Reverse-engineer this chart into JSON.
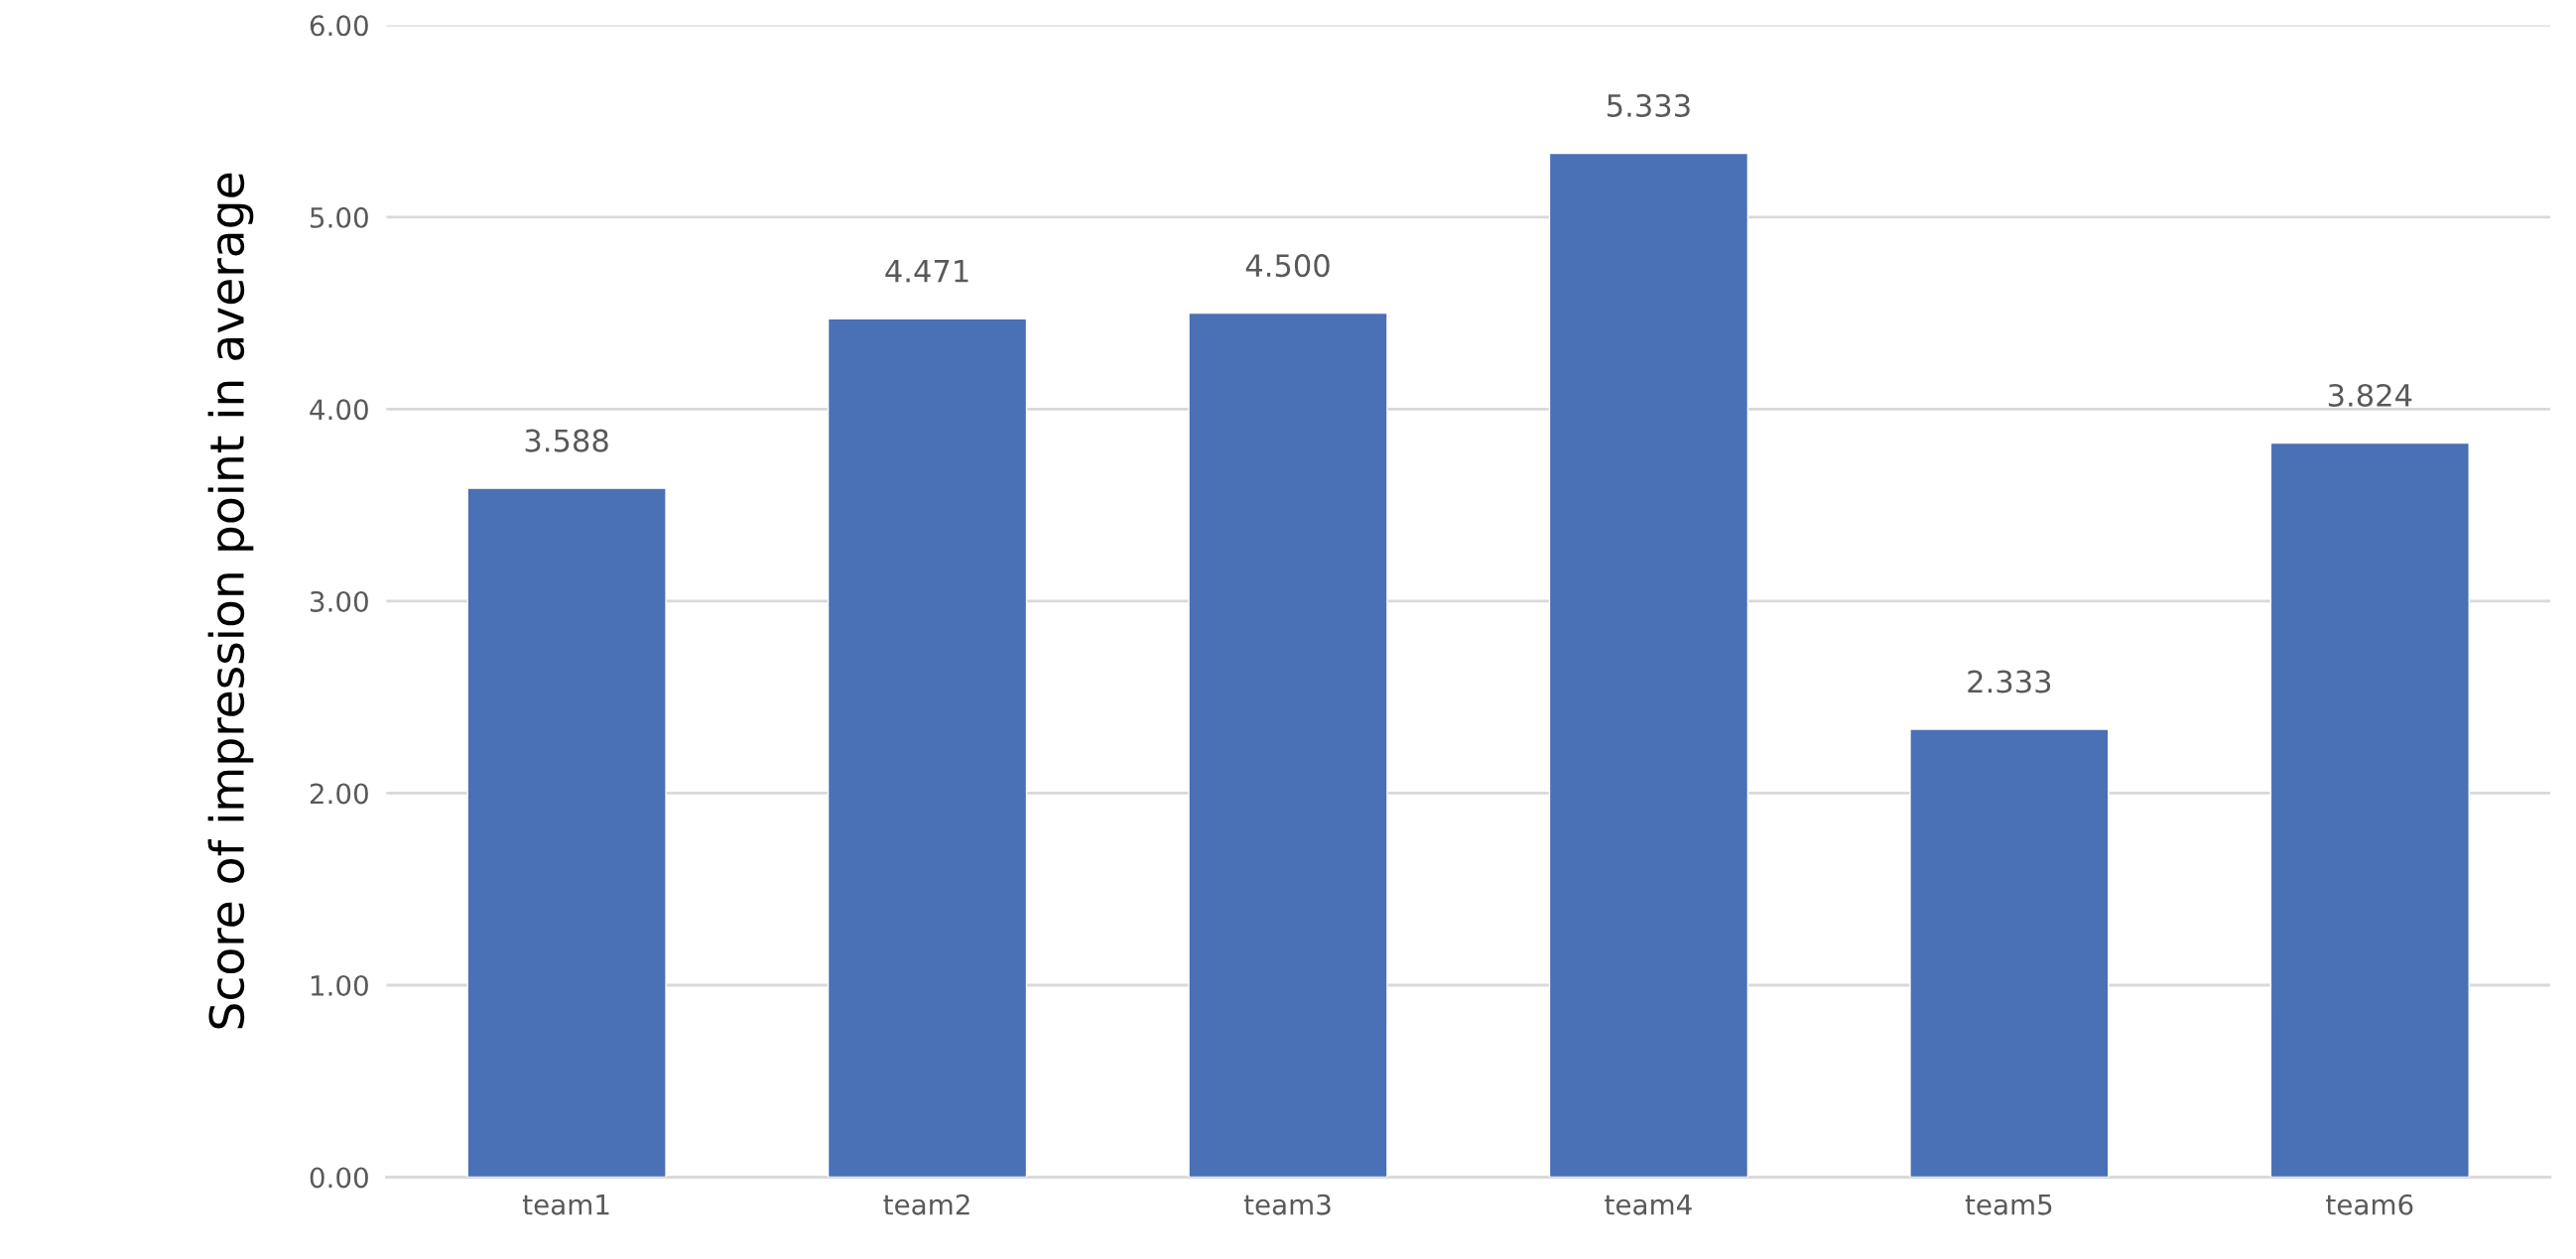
{
  "chart_data": {
    "type": "bar",
    "ylabel": "Score of impression point in average",
    "categories": [
      "team1",
      "team2",
      "team3",
      "team4",
      "team5",
      "team6"
    ],
    "values": [
      3.588,
      4.471,
      4.5,
      5.333,
      2.333,
      3.824
    ],
    "value_labels": [
      "3.588",
      "4.471",
      "4.500",
      "5.333",
      "2.333",
      "3.824"
    ],
    "color": "#4a70b5",
    "ylim": [
      0,
      6
    ],
    "yticks": [
      {
        "value": 0,
        "label": "0.00"
      },
      {
        "value": 1,
        "label": "1.00"
      },
      {
        "value": 2,
        "label": "2.00"
      },
      {
        "value": 3,
        "label": "3.00"
      },
      {
        "value": 4,
        "label": "4.00"
      },
      {
        "value": 5,
        "label": "5.00"
      },
      {
        "value": 6,
        "label": "6.00"
      }
    ],
    "grid": "y"
  }
}
